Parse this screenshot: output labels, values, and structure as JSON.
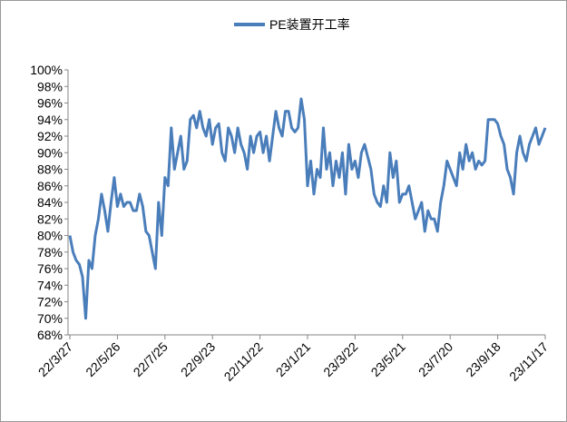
{
  "chart_data": {
    "type": "line",
    "categories": [
      "22/3/27",
      null,
      null,
      null,
      null,
      null,
      null,
      null,
      null,
      null,
      null,
      null,
      null,
      null,
      null,
      "22/5/26",
      null,
      null,
      null,
      null,
      null,
      null,
      null,
      null,
      null,
      null,
      null,
      null,
      null,
      null,
      "22/7/25",
      null,
      null,
      null,
      null,
      null,
      null,
      null,
      null,
      null,
      null,
      null,
      null,
      null,
      null,
      "22/9/23",
      null,
      null,
      null,
      null,
      null,
      null,
      null,
      null,
      null,
      null,
      null,
      null,
      null,
      null,
      "22/11/22",
      null,
      null,
      null,
      null,
      null,
      null,
      null,
      null,
      null,
      null,
      null,
      null,
      null,
      null,
      "23/1/21",
      null,
      null,
      null,
      null,
      null,
      null,
      null,
      null,
      null,
      null,
      null,
      null,
      null,
      null,
      "23/3/22",
      null,
      null,
      null,
      null,
      null,
      null,
      null,
      null,
      null,
      null,
      null,
      null,
      null,
      null,
      "23/5/21",
      null,
      null,
      null,
      null,
      null,
      null,
      null,
      null,
      null,
      null,
      null,
      null,
      null,
      null,
      "23/7/20",
      null,
      null,
      null,
      null,
      null,
      null,
      null,
      null,
      null,
      null,
      null,
      null,
      null,
      null,
      "23/9/18",
      null,
      null,
      null,
      null,
      null,
      null,
      null,
      null,
      null,
      null,
      null,
      null,
      null,
      null,
      "23/11/17"
    ],
    "series": [
      {
        "name": "PE装置开工率",
        "color": "#4a7ebb",
        "values": [
          80,
          78,
          77,
          76.5,
          75,
          70,
          77,
          76,
          80,
          82,
          85,
          83,
          80.5,
          84,
          87,
          83.5,
          85,
          83.5,
          84,
          84,
          83,
          83,
          85,
          83.5,
          80.5,
          80,
          78,
          76,
          84,
          80,
          87,
          86,
          93,
          88,
          90,
          92,
          88,
          89,
          94,
          94.5,
          93,
          95,
          93,
          92,
          94,
          91,
          93,
          93.5,
          90,
          89,
          93,
          92,
          90,
          93,
          91,
          90,
          88,
          92,
          90,
          92,
          92.5,
          90,
          92,
          89,
          92,
          95,
          93,
          92,
          95,
          95,
          93,
          92.5,
          93,
          96.5,
          94,
          86,
          89,
          85,
          88,
          87,
          93,
          88,
          90,
          86,
          89,
          87,
          90,
          85,
          91,
          88,
          89,
          87,
          90,
          91,
          89.5,
          88,
          85,
          84,
          83.5,
          86,
          84,
          90,
          87,
          89,
          84,
          85,
          85,
          86,
          84,
          82,
          83,
          84,
          80.5,
          83,
          82,
          82,
          80.5,
          84,
          86,
          89,
          88,
          87,
          86,
          90,
          88,
          91,
          89,
          90,
          88,
          89,
          88.5,
          89,
          94,
          94,
          94,
          93.5,
          92,
          91,
          88,
          87,
          85,
          90,
          92,
          90,
          89,
          91,
          92,
          93,
          91,
          92,
          93
        ]
      }
    ],
    "ylim": [
      68,
      100
    ],
    "yticks": [
      {
        "value": 68,
        "label": "68%"
      },
      {
        "value": 70,
        "label": "70%"
      },
      {
        "value": 72,
        "label": "72%"
      },
      {
        "value": 74,
        "label": "74%"
      },
      {
        "value": 76,
        "label": "76%"
      },
      {
        "value": 78,
        "label": "78%"
      },
      {
        "value": 80,
        "label": "80%"
      },
      {
        "value": 82,
        "label": "82%"
      },
      {
        "value": 84,
        "label": "84%"
      },
      {
        "value": 86,
        "label": "86%"
      },
      {
        "value": 88,
        "label": "88%"
      },
      {
        "value": 90,
        "label": "90%"
      },
      {
        "value": 92,
        "label": "92%"
      },
      {
        "value": 94,
        "label": "94%"
      },
      {
        "value": 96,
        "label": "96%"
      },
      {
        "value": 98,
        "label": "98%"
      },
      {
        "value": 100,
        "label": "100%"
      }
    ],
    "grid": false,
    "legend": "top"
  }
}
